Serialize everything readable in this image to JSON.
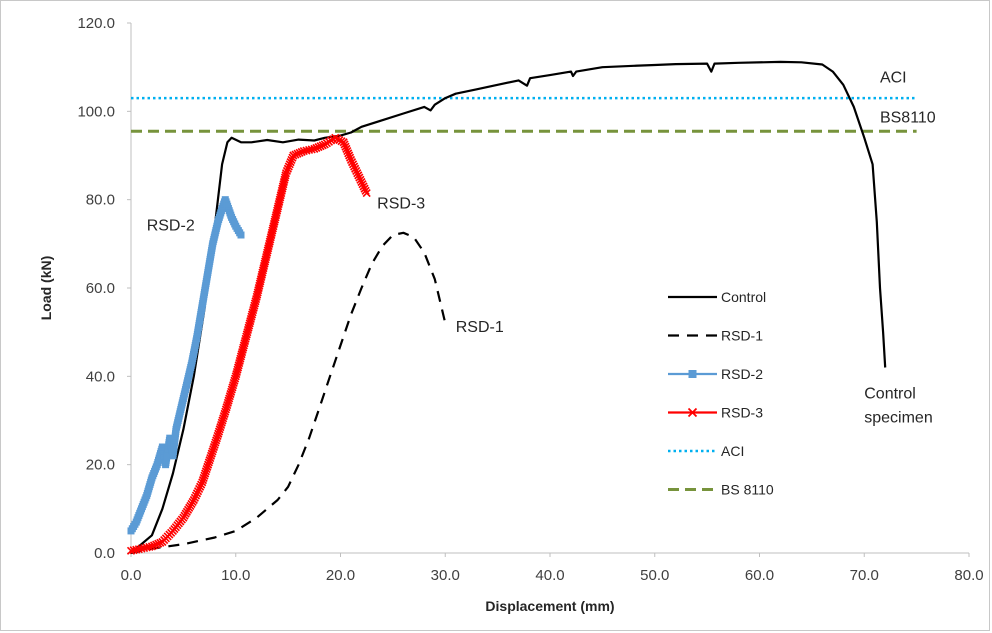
{
  "chart_data": {
    "type": "line",
    "title": "",
    "xlabel": "Displacement (mm)",
    "ylabel": "Load (kN)",
    "xlim": [
      0,
      80
    ],
    "ylim": [
      0,
      120
    ],
    "x_ticks": [
      "0.0",
      "10.0",
      "20.0",
      "30.0",
      "40.0",
      "50.0",
      "60.0",
      "70.0",
      "80.0"
    ],
    "y_ticks": [
      "0.0",
      "20.0",
      "40.0",
      "60.0",
      "80.0",
      "100.0",
      "120.0"
    ],
    "grid": false,
    "legend_position": "right",
    "series": [
      {
        "name": "Control",
        "color": "#000000",
        "style": "solid",
        "points": [
          [
            0,
            0
          ],
          [
            2,
            4
          ],
          [
            3,
            10
          ],
          [
            4,
            18
          ],
          [
            5,
            28
          ],
          [
            6,
            40
          ],
          [
            7,
            55
          ],
          [
            7.8,
            70
          ],
          [
            8.3,
            80
          ],
          [
            8.7,
            88
          ],
          [
            9.2,
            93
          ],
          [
            9.6,
            94
          ],
          [
            10.5,
            93
          ],
          [
            11.5,
            93
          ],
          [
            13,
            93.5
          ],
          [
            14.5,
            93
          ],
          [
            16,
            93.6
          ],
          [
            17.5,
            93.4
          ],
          [
            18.5,
            94
          ],
          [
            20,
            94.5
          ],
          [
            21,
            95.2
          ],
          [
            22,
            96.5
          ],
          [
            24,
            98
          ],
          [
            26,
            99.5
          ],
          [
            28,
            101
          ],
          [
            28.6,
            100.2
          ],
          [
            29,
            101.5
          ],
          [
            30,
            103
          ],
          [
            31,
            104
          ],
          [
            33,
            105
          ],
          [
            35,
            106
          ],
          [
            37,
            107
          ],
          [
            37.8,
            105.8
          ],
          [
            38.1,
            107.5
          ],
          [
            40,
            108.2
          ],
          [
            42,
            109
          ],
          [
            42.2,
            108
          ],
          [
            42.5,
            109
          ],
          [
            45,
            110
          ],
          [
            48,
            110.3
          ],
          [
            50,
            110.5
          ],
          [
            52,
            110.7
          ],
          [
            55,
            110.8
          ],
          [
            55.4,
            109
          ],
          [
            55.7,
            110.8
          ],
          [
            58,
            111
          ],
          [
            62,
            111.2
          ],
          [
            64,
            111.1
          ],
          [
            66,
            110.6
          ],
          [
            67,
            109
          ],
          [
            68,
            106
          ],
          [
            69,
            101
          ],
          [
            70,
            94
          ],
          [
            70.8,
            88
          ],
          [
            71.2,
            75
          ],
          [
            71.5,
            60
          ],
          [
            71.8,
            50
          ],
          [
            72,
            42
          ]
        ]
      },
      {
        "name": "RSD-1",
        "color": "#000000",
        "style": "dashed",
        "points": [
          [
            0,
            0
          ],
          [
            2,
            1
          ],
          [
            5,
            2
          ],
          [
            8,
            3.5
          ],
          [
            10,
            5
          ],
          [
            12,
            8
          ],
          [
            14,
            12
          ],
          [
            15,
            15
          ],
          [
            16,
            20
          ],
          [
            17,
            26
          ],
          [
            18,
            33
          ],
          [
            19,
            40
          ],
          [
            20,
            47
          ],
          [
            21,
            54
          ],
          [
            22,
            60
          ],
          [
            23,
            65.5
          ],
          [
            24,
            69.5
          ],
          [
            25,
            72
          ],
          [
            26,
            72.5
          ],
          [
            27,
            71.5
          ],
          [
            28,
            68
          ],
          [
            29,
            62
          ],
          [
            30,
            52
          ]
        ]
      },
      {
        "name": "RSD-2",
        "color": "#5b9bd5",
        "style": "marker-square",
        "points": [
          [
            0,
            5
          ],
          [
            0.5,
            7
          ],
          [
            1,
            10
          ],
          [
            1.5,
            13
          ],
          [
            2,
            17
          ],
          [
            2.5,
            20
          ],
          [
            3,
            24
          ],
          [
            3.3,
            20
          ],
          [
            3.7,
            26
          ],
          [
            4,
            22
          ],
          [
            4.3,
            28
          ],
          [
            4.8,
            33
          ],
          [
            5.3,
            38
          ],
          [
            5.8,
            43
          ],
          [
            6.3,
            49
          ],
          [
            6.8,
            56
          ],
          [
            7.3,
            63
          ],
          [
            7.8,
            70
          ],
          [
            8.3,
            75
          ],
          [
            8.7,
            78
          ],
          [
            9,
            80
          ],
          [
            9.3,
            78
          ],
          [
            9.6,
            76
          ],
          [
            10,
            74
          ],
          [
            10.5,
            72
          ]
        ]
      },
      {
        "name": "RSD-3",
        "color": "#ff0000",
        "style": "marker-cross",
        "points": [
          [
            0,
            0.5
          ],
          [
            1,
            1
          ],
          [
            2,
            1.5
          ],
          [
            3,
            2.5
          ],
          [
            4,
            5
          ],
          [
            5,
            8
          ],
          [
            6,
            12
          ],
          [
            6.8,
            16
          ],
          [
            7.5,
            21
          ],
          [
            8.2,
            26
          ],
          [
            9,
            32
          ],
          [
            10,
            40
          ],
          [
            11,
            49
          ],
          [
            12,
            58
          ],
          [
            13,
            68
          ],
          [
            14,
            78
          ],
          [
            14.8,
            86
          ],
          [
            15.5,
            90
          ],
          [
            16.5,
            91
          ],
          [
            17.5,
            91.5
          ],
          [
            18.5,
            92.5
          ],
          [
            19.5,
            94
          ],
          [
            20.3,
            93
          ],
          [
            21,
            89
          ],
          [
            21.8,
            85
          ],
          [
            22.5,
            81.5
          ]
        ]
      },
      {
        "name": "ACI",
        "color": "#00b0f0",
        "style": "dotted",
        "points": [
          [
            0,
            103
          ],
          [
            75,
            103
          ]
        ]
      },
      {
        "name": "BS 8110",
        "color": "#77933c",
        "style": "dashed-long",
        "points": [
          [
            0,
            95.5
          ],
          [
            75,
            95.5
          ]
        ]
      }
    ],
    "annotations": [
      {
        "text": "ACI",
        "x": 71.5,
        "y": 106.5
      },
      {
        "text": "BS8110",
        "x": 71.5,
        "y": 97.5
      },
      {
        "text": "RSD-3",
        "x": 23.5,
        "y": 78
      },
      {
        "text": "RSD-2",
        "x": 1.5,
        "y": 73
      },
      {
        "text": "RSD-1",
        "x": 31,
        "y": 50
      },
      {
        "text": "Control",
        "x": 70,
        "y": 35
      },
      {
        "text": "specimen",
        "x": 70,
        "y": 29.5
      }
    ]
  }
}
